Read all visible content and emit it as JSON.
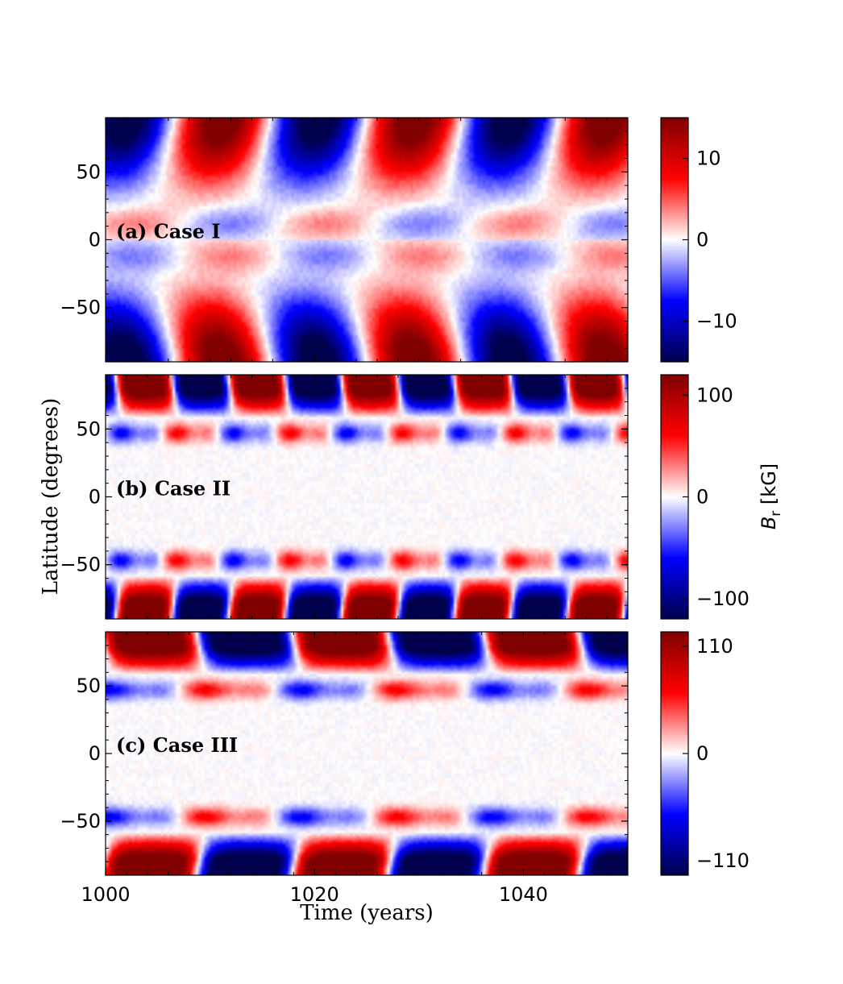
{
  "chart_data": {
    "type": "heatmap",
    "figure": {
      "xlabel": "Time (years)",
      "ylabel": "Latitude (degrees)",
      "colorbar_label": "B_r [kG]",
      "colorbar_label_main": "B",
      "colorbar_label_sub": "r",
      "colorbar_label_unit": "[kG]",
      "colormap": "seismic",
      "x_ticks": [
        1000,
        1020,
        1040
      ],
      "x_tick_labels": [
        "1000",
        "1020",
        "1040"
      ],
      "xlim": [
        1000,
        1050
      ],
      "shared_x": true
    },
    "panels": [
      {
        "title": "(a) Case I",
        "ylim": [
          -90,
          90
        ],
        "y_ticks": [
          50,
          0,
          -50
        ],
        "y_tick_labels": [
          "50",
          "0",
          "−50"
        ],
        "color_range": [
          -15,
          15
        ],
        "colorbar_ticks": [
          10,
          0,
          -10
        ],
        "colorbar_tick_labels": [
          "10",
          "0",
          "−10"
        ],
        "cycle_period_years": 18.4,
        "polar_field_kG": 15,
        "pattern": "polar caps alternating sign each half-cycle; weak equatorward-sloping streaks; antisymmetric about equator"
      },
      {
        "title": "(b) Case II",
        "ylim": [
          -90,
          90
        ],
        "y_ticks": [
          50,
          0,
          -50
        ],
        "y_tick_labels": [
          "50",
          "0",
          "−50"
        ],
        "color_range": [
          -120,
          120
        ],
        "colorbar_ticks": [
          100,
          0,
          -100
        ],
        "colorbar_tick_labels": [
          "100",
          "0",
          "−100"
        ],
        "cycle_period_years": 10.8,
        "polar_field_kG": 120,
        "midlatitude_blob_lat": 47,
        "pattern": "strong polar flux with mid-latitude (~47 deg) blobs alternating sign; symmetric about equator"
      },
      {
        "title": "(c) Case III",
        "ylim": [
          -90,
          90
        ],
        "y_ticks": [
          50,
          0,
          -50
        ],
        "y_tick_labels": [
          "50",
          "0",
          "−50"
        ],
        "color_range": [
          -125,
          125
        ],
        "colorbar_ticks": [
          110,
          0,
          -110
        ],
        "colorbar_tick_labels": [
          "110",
          "0",
          "−110"
        ],
        "cycle_period_years": 18.3,
        "polar_field_kG": 125,
        "midlatitude_blob_lat": 47,
        "pattern": "strong polar flux with mid-latitude (~47 deg) blobs alternating sign; symmetric about equator"
      }
    ]
  }
}
